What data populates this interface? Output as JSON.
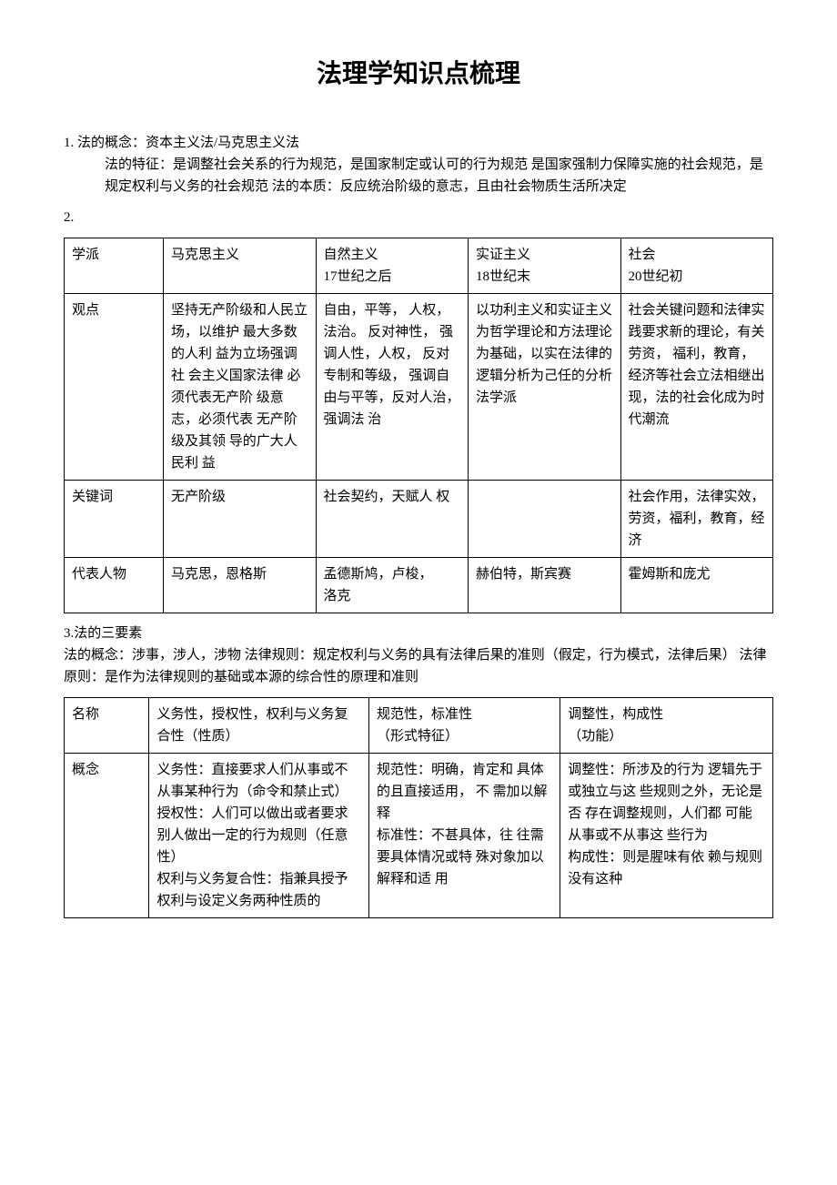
{
  "title": "法理学知识点梳理",
  "p1_num": "1. 法的概念：资本主义法/马克思主义法",
  "p1_body": "法的特征：是调整社会关系的行为规范，是国家制定或认可的行为规范 是国家强制力保障实施的社会规范，是规定权利与义务的社会规范 法的本质：反应统治阶级的意志，且由社会物质生活所决定",
  "p2_num": "2.",
  "table1": {
    "r1c1": "学派",
    "r1c2": "马克思主义",
    "r1c3": "自然主义\n17世纪之后",
    "r1c4": "实证主义\n18世纪末",
    "r1c5": "社会\n20世纪初",
    "r2c1": "观点",
    "r2c2": "坚持无产阶级和人民立场，以维护 最大多数的人利 益为立场强调社 会主义国家法律 必须代表无产阶 级意志，必须代表 无产阶级及其领 导的广大人民利 益",
    "r2c3": "自由，平等， 人权， 法治。 反对神性， 强调人性，人权， 反对专制和等级， 强调自由与平等，反对人治， 强调法 治",
    "r2c4": "以功利主义和实证主义为哲学理论和方法理论为基础，以实在法律的逻辑分析为己任的分析法学派",
    "r2c5": "社会关键问题和法律实践要求新的理论，有关劳资， 福利，教育，经济等社会立法相继出现，法的社会化成为时代潮流",
    "r3c1": "关键词",
    "r3c2": "无产阶级",
    "r3c3": "社会契约，天赋人 权",
    "r3c4": "",
    "r3c5": "社会作用，法律实效，劳资，福利，教育，经济",
    "r4c1": "代表人物",
    "r4c2": "马克思，恩格斯",
    "r4c3": "孟德斯鸠，卢梭，\n洛克",
    "r4c4": "赫伯特，斯宾赛",
    "r4c5": "霍姆斯和庞尤"
  },
  "p3_num": "3.法的三要素",
  "p3_body": "法的概念：涉事，涉人，涉物 法律规则：规定权利与义务的具有法律后果的准则（假定，行为模式，法律后果） 法律原则：是作为法律规则的基础或本源的综合性的原理和准则",
  "table2": {
    "r1c1": "名称",
    "r1c2": "义务性，授权性，权利与义务复合性（性质）",
    "r1c3": "规范性，标准性\n（形式特征）",
    "r1c4": "调整性，构成性\n（功能）",
    "r2c1": "概念",
    "r2c2": "义务性：直接要求人们从事或不从事某种行为（命令和禁止式）\n授权性：人们可以做出或者要求别人做出一定的行为规则（任意性）\n权利与义务复合性：指兼具授予权利与设定义务两种性质的",
    "r2c3": "规范性：明确，肯定和 具体的且直接适用， 不 需加以解释\n标准性：不甚具体，往 往需要具体情况或特 殊对象加以解释和适 用",
    "r2c4": "调整性：所涉及的行为 逻辑先于或独立与这 些规则之外，无论是否 存在调整规则，人们都 可能从事或不从事这 些行为\n构成性：则是腥味有依 赖与规则没有这种"
  }
}
